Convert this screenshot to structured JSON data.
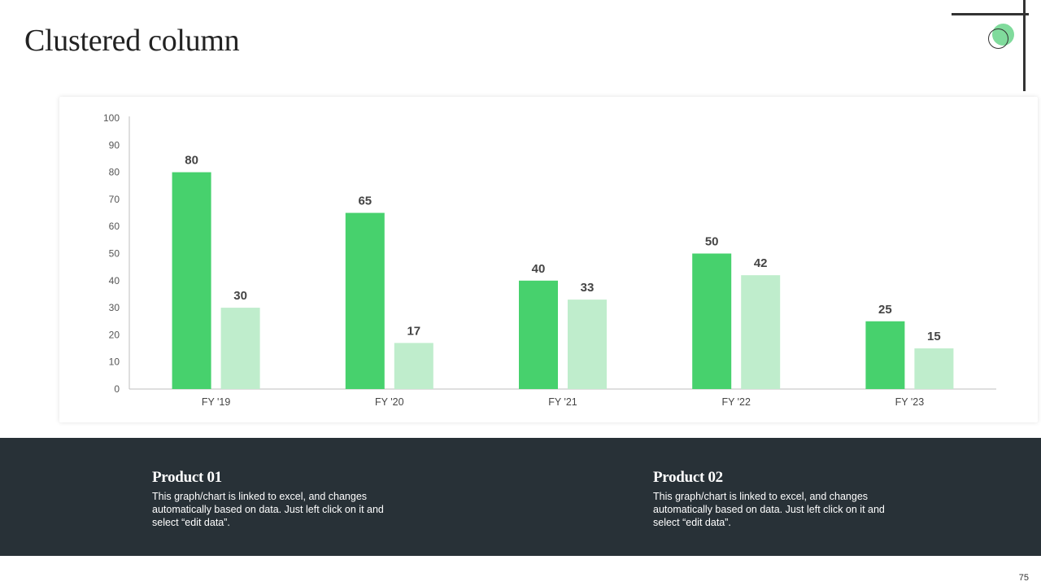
{
  "slide": {
    "title": "Clustered column",
    "page_number": "75"
  },
  "chart_data": {
    "type": "bar",
    "categories": [
      "FY '19",
      "FY '20",
      "FY '21",
      "FY '22",
      "FY '23"
    ],
    "series": [
      {
        "values": [
          80,
          65,
          40,
          50,
          25
        ],
        "color": "#47d16d"
      },
      {
        "values": [
          30,
          17,
          33,
          42,
          15
        ],
        "color": "#bfedcc"
      }
    ],
    "ylim": [
      0,
      100
    ],
    "yticks": [
      "0",
      "10",
      "20",
      "30",
      "40",
      "50",
      "60",
      "70",
      "80",
      "90",
      "100"
    ],
    "xlabel": "",
    "ylabel": "",
    "grid": false,
    "data_labels": true
  },
  "legend": [
    {
      "title": "Product 01",
      "description": "This graph/chart is linked to excel, and changes automatically based on data. Just left click on it and select “edit data”."
    },
    {
      "title": "Product 02",
      "description": "This graph/chart is linked to excel, and changes automatically based on data. Just left click on it and select “edit data”."
    }
  ],
  "colors": {
    "accent": "#47d16d",
    "accent_light": "#bfedcc",
    "dark_band": "#283137"
  }
}
